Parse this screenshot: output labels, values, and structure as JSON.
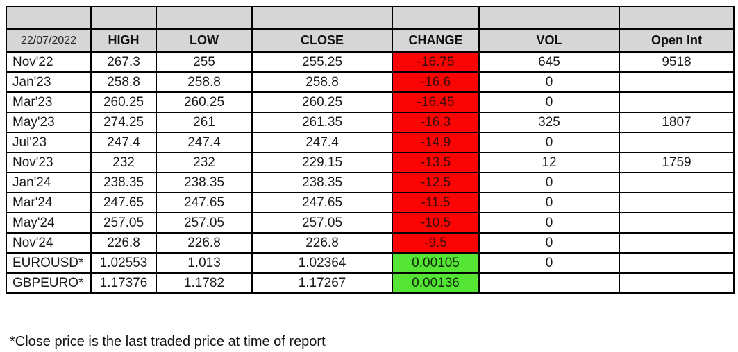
{
  "table": {
    "date": "22/07/2022",
    "headers": [
      "HIGH",
      "LOW",
      "CLOSE",
      "CHANGE",
      "VOL",
      "Open Int"
    ],
    "rows": [
      {
        "label": "Nov'22",
        "high": "267.3",
        "low": "255",
        "close": "255.25",
        "change": "-16.75",
        "change_dir": "neg",
        "vol": "645",
        "open_int": "9518"
      },
      {
        "label": "Jan'23",
        "high": "258.8",
        "low": "258.8",
        "close": "258.8",
        "change": "-16.6",
        "change_dir": "neg",
        "vol": "0",
        "open_int": ""
      },
      {
        "label": "Mar'23",
        "high": "260.25",
        "low": "260.25",
        "close": "260.25",
        "change": "-16.45",
        "change_dir": "neg",
        "vol": "0",
        "open_int": ""
      },
      {
        "label": "May'23",
        "high": "274.25",
        "low": "261",
        "close": "261.35",
        "change": "-16.3",
        "change_dir": "neg",
        "vol": "325",
        "open_int": "1807"
      },
      {
        "label": "Jul'23",
        "high": "247.4",
        "low": "247.4",
        "close": "247.4",
        "change": "-14.9",
        "change_dir": "neg",
        "vol": "0",
        "open_int": ""
      },
      {
        "label": "Nov'23",
        "high": "232",
        "low": "232",
        "close": "229.15",
        "change": "-13.5",
        "change_dir": "neg",
        "vol": "12",
        "open_int": "1759"
      },
      {
        "label": "Jan'24",
        "high": "238.35",
        "low": "238.35",
        "close": "238.35",
        "change": "-12.5",
        "change_dir": "neg",
        "vol": "0",
        "open_int": ""
      },
      {
        "label": "Mar'24",
        "high": "247.65",
        "low": "247.65",
        "close": "247.65",
        "change": "-11.5",
        "change_dir": "neg",
        "vol": "0",
        "open_int": ""
      },
      {
        "label": "May'24",
        "high": "257.05",
        "low": "257.05",
        "close": "257.05",
        "change": "-10.5",
        "change_dir": "neg",
        "vol": "0",
        "open_int": ""
      },
      {
        "label": "Nov'24",
        "high": "226.8",
        "low": "226.8",
        "close": "226.8",
        "change": "-9.5",
        "change_dir": "neg",
        "vol": "0",
        "open_int": ""
      },
      {
        "label": "EUROUSD*",
        "high": "1.02553",
        "low": "1.013",
        "close": "1.02364",
        "change": "0.00105",
        "change_dir": "pos",
        "vol": "0",
        "open_int": ""
      },
      {
        "label": "GBPEURO*",
        "high": "1.17376",
        "low": "1.1782",
        "close": "1.17267",
        "change": "0.00136",
        "change_dir": "pos",
        "vol": "",
        "open_int": ""
      }
    ],
    "footnote": "*Close price is the last traded price at time of report"
  },
  "colors": {
    "header_bg": "#d6d6d6",
    "negative_bg": "#fb0404",
    "positive_bg": "#55e635",
    "border": "#000000"
  }
}
